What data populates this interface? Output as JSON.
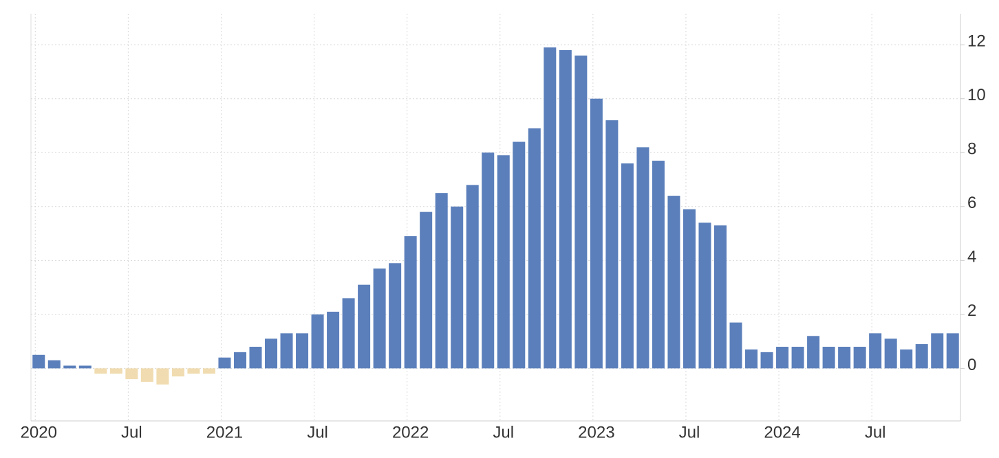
{
  "chart_data": {
    "type": "bar",
    "categories": [
      "2020",
      null,
      null,
      null,
      null,
      null,
      "Jul",
      null,
      null,
      null,
      null,
      null,
      "2021",
      null,
      null,
      null,
      null,
      null,
      "Jul",
      null,
      null,
      null,
      null,
      null,
      "2022",
      null,
      null,
      null,
      null,
      null,
      "Jul",
      null,
      null,
      null,
      null,
      null,
      "2023",
      null,
      null,
      null,
      null,
      null,
      "Jul",
      null,
      null,
      null,
      null,
      null,
      "2024",
      null,
      null,
      null,
      null,
      null,
      "Jul",
      null,
      null,
      null,
      null,
      null
    ],
    "values": [
      0.5,
      0.3,
      0.1,
      0.1,
      -0.2,
      -0.2,
      -0.4,
      -0.5,
      -0.6,
      -0.3,
      -0.2,
      -0.2,
      0.4,
      0.6,
      0.8,
      1.1,
      1.3,
      1.3,
      2.0,
      2.1,
      2.6,
      3.1,
      3.7,
      3.9,
      4.9,
      5.8,
      6.5,
      6.0,
      6.8,
      8.0,
      7.9,
      8.4,
      8.9,
      11.9,
      11.8,
      11.6,
      10.0,
      9.2,
      7.6,
      8.2,
      7.7,
      6.4,
      5.9,
      5.4,
      5.3,
      1.7,
      0.7,
      0.6,
      0.8,
      0.8,
      1.2,
      0.8,
      0.8,
      0.8,
      1.3,
      1.1,
      0.7,
      0.9,
      1.3,
      1.3
    ],
    "color": "#5b7fbb",
    "negative_color": "#f0dcb0",
    "ylim": [
      -1.95,
      13.15
    ],
    "yticks": [
      0,
      2,
      4,
      6,
      8,
      10,
      12
    ],
    "grid": true,
    "y_axis_side": "right"
  }
}
